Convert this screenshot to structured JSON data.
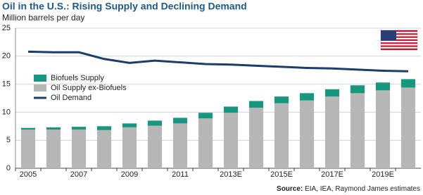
{
  "chart_data": {
    "type": "bar",
    "stacked": true,
    "title": "Oil in the U.S.: Rising Supply and Declining Demand",
    "subtitle": "Million barrels per day",
    "source_label": "Source:",
    "source": "EIA, IEA, Raymond James estimates",
    "categories": [
      "2005",
      null,
      "2007",
      null,
      "2009",
      null,
      "2011",
      null,
      "2013E",
      null,
      "2015E",
      null,
      "2017E",
      null,
      "2019E",
      null
    ],
    "ylim": [
      0,
      25
    ],
    "yticks": [
      0,
      5,
      10,
      15,
      20,
      25
    ],
    "grid": true,
    "legend": "left",
    "series": [
      {
        "name": "Biofuels Supply",
        "type": "bar",
        "color": "#17977f",
        "values": [
          0.3,
          0.4,
          0.5,
          0.7,
          0.7,
          0.9,
          1.0,
          1.0,
          1.1,
          1.2,
          1.2,
          1.3,
          1.3,
          1.4,
          1.4,
          1.5
        ]
      },
      {
        "name": "Oil Supply ex-Biofuels",
        "type": "bar",
        "color": "#b7b7b7",
        "values": [
          6.9,
          6.9,
          6.9,
          6.8,
          7.3,
          7.6,
          8.0,
          8.9,
          9.9,
          10.8,
          11.6,
          12.1,
          12.8,
          13.4,
          13.9,
          14.4
        ]
      },
      {
        "name": "Oil Demand",
        "type": "line",
        "color": "#1c3d6e",
        "values": [
          20.8,
          20.7,
          20.7,
          19.5,
          18.8,
          19.2,
          18.9,
          18.6,
          18.5,
          18.3,
          18.1,
          17.9,
          17.8,
          17.6,
          17.4,
          17.3
        ]
      }
    ]
  }
}
